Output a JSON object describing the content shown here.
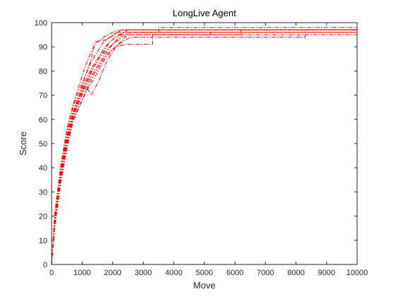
{
  "chart_data": {
    "type": "line",
    "title": "LongLive Agent",
    "xlabel": "Move",
    "ylabel": "Score",
    "xlim": [
      0,
      10000
    ],
    "ylim": [
      0,
      100
    ],
    "xticks": [
      0,
      1000,
      2000,
      3000,
      4000,
      5000,
      6000,
      7000,
      8000,
      9000,
      10000
    ],
    "yticks": [
      0,
      10,
      20,
      30,
      40,
      50,
      60,
      70,
      80,
      90,
      100
    ],
    "grid": false,
    "line_style": "dash-dot",
    "line_color": "#ff0000",
    "series": [
      {
        "x": [
          0,
          100,
          300,
          500,
          700,
          1000,
          1300,
          1600,
          1900,
          2200,
          2500,
          10000
        ],
        "y": [
          0,
          18,
          38,
          52,
          63,
          72,
          80,
          86,
          92,
          95,
          97,
          97
        ]
      },
      {
        "x": [
          0,
          100,
          300,
          500,
          700,
          1000,
          1200,
          1400,
          1600,
          1800,
          2100,
          2400,
          3300,
          3300,
          10000
        ],
        "y": [
          0,
          15,
          34,
          48,
          59,
          68,
          74,
          79,
          83,
          87,
          90,
          91,
          91,
          95,
          95
        ]
      },
      {
        "x": [
          0,
          100,
          300,
          500,
          700,
          900,
          1100,
          1300,
          1500,
          1700,
          2000,
          2300,
          2600,
          10000
        ],
        "y": [
          0,
          20,
          40,
          55,
          65,
          72,
          78,
          84,
          88,
          92,
          95,
          97,
          97,
          97
        ]
      },
      {
        "x": [
          0,
          100,
          300,
          500,
          700,
          1000,
          1300,
          1600,
          1800,
          2000,
          2300,
          2600,
          10000
        ],
        "y": [
          0,
          16,
          36,
          50,
          61,
          70,
          78,
          84,
          88,
          91,
          94,
          96,
          96
        ]
      },
      {
        "x": [
          0,
          100,
          300,
          500,
          700,
          900,
          1100,
          1300,
          1500,
          1700,
          1900,
          2100,
          2400,
          3500,
          3500,
          10000
        ],
        "y": [
          0,
          19,
          39,
          53,
          63,
          70,
          76,
          81,
          85,
          89,
          92,
          94,
          96,
          96,
          98,
          98
        ]
      },
      {
        "x": [
          0,
          100,
          300,
          500,
          700,
          900,
          1100,
          1250,
          1400,
          1600,
          1900,
          2300,
          5200,
          5200,
          10000
        ],
        "y": [
          0,
          17,
          36,
          51,
          61,
          68,
          74,
          78,
          82,
          86,
          90,
          95,
          95,
          97,
          97
        ]
      },
      {
        "x": [
          0,
          100,
          300,
          500,
          700,
          900,
          1100,
          1300,
          1550,
          1800,
          2100,
          2500,
          6200,
          6200,
          10000
        ],
        "y": [
          0,
          18,
          37,
          51,
          62,
          69,
          74,
          70,
          76,
          84,
          90,
          95,
          95,
          97,
          97
        ]
      },
      {
        "x": [
          0,
          100,
          300,
          500,
          700,
          900,
          1100,
          1300,
          1500,
          1700,
          2000,
          2300,
          10000
        ],
        "y": [
          0,
          21,
          41,
          56,
          66,
          74,
          82,
          88,
          92,
          94,
          96,
          97,
          97
        ]
      },
      {
        "x": [
          0,
          100,
          300,
          500,
          700,
          1000,
          1200,
          1400,
          1600,
          1800,
          2000,
          2300,
          2600,
          8300,
          8300,
          10000
        ],
        "y": [
          0,
          16,
          35,
          49,
          60,
          68,
          73,
          77,
          82,
          86,
          89,
          92,
          94,
          94,
          97,
          97
        ]
      },
      {
        "x": [
          0,
          100,
          300,
          500,
          700,
          900,
          1100,
          1300,
          1400,
          1800,
          2200,
          2600,
          10000
        ],
        "y": [
          0,
          18,
          38,
          52,
          62,
          70,
          78,
          85,
          92,
          93,
          96,
          96,
          96
        ]
      }
    ]
  }
}
